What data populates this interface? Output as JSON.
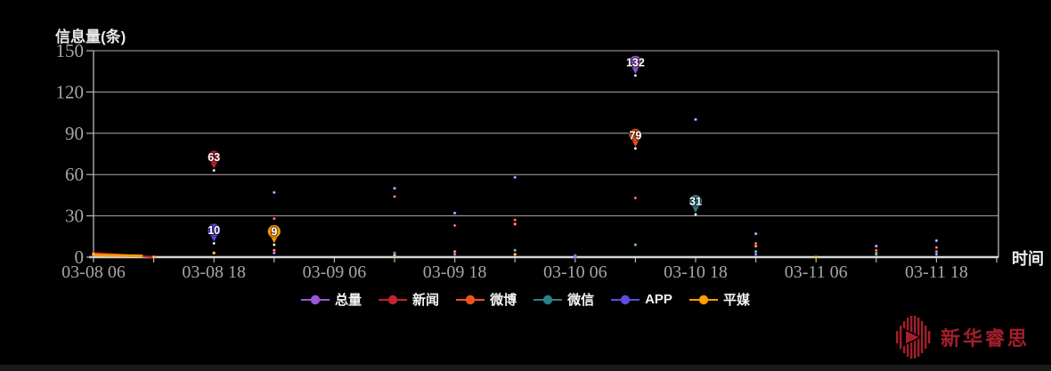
{
  "chart": {
    "title": "信息量(条)",
    "x_axis_label": "时间"
  },
  "chart_data": {
    "type": "line",
    "title": "信息量(条)",
    "xlabel": "时间",
    "ylabel": "信息量(条)",
    "ylim": [
      0,
      150
    ],
    "grid": "horizontal",
    "legend_position": "bottom",
    "y_ticks": [
      0,
      30,
      60,
      90,
      120,
      150
    ],
    "x": [
      "03-08 06",
      "03-08 12",
      "03-08 18",
      "03-09 00",
      "03-09 06",
      "03-09 12",
      "03-09 18",
      "03-10 00",
      "03-10 06",
      "03-10 12",
      "03-10 18",
      "03-11 00",
      "03-11 06",
      "03-11 12",
      "03-11 18"
    ],
    "x_tick_labels": [
      "03-08 06",
      "03-08 18",
      "03-09 06",
      "03-09 18",
      "03-10 06",
      "03-10 18",
      "03-11 06",
      "03-11 18"
    ],
    "series": [
      {
        "name": "总量",
        "color": "#9a57d8",
        "points": [
          [
            0,
            2
          ],
          [
            1,
            0
          ],
          [
            3,
            47
          ],
          [
            5,
            50
          ],
          [
            6,
            32
          ],
          [
            7,
            58
          ],
          [
            8,
            1
          ],
          [
            10,
            100
          ],
          [
            11,
            17
          ],
          [
            13,
            8
          ],
          [
            14,
            12
          ]
        ]
      },
      {
        "name": "新闻",
        "color": "#c2232f",
        "points": [
          [
            0,
            3
          ],
          [
            1,
            0
          ],
          [
            3,
            28
          ],
          [
            5,
            44
          ],
          [
            6,
            23
          ],
          [
            7,
            27
          ],
          [
            9,
            43
          ],
          [
            11,
            10
          ],
          [
            13,
            5
          ],
          [
            14,
            7
          ]
        ]
      },
      {
        "name": "微博",
        "color": "#f4521c",
        "points": [
          [
            3,
            5
          ],
          [
            6,
            4
          ],
          [
            7,
            24
          ],
          [
            11,
            8
          ],
          [
            13,
            3
          ],
          [
            14,
            4
          ]
        ]
      },
      {
        "name": "微信",
        "color": "#2e7f8a",
        "points": [
          [
            5,
            3
          ],
          [
            7,
            5
          ],
          [
            9,
            9
          ],
          [
            11,
            4
          ],
          [
            13,
            2
          ],
          [
            14,
            3
          ]
        ]
      },
      {
        "name": "APP",
        "color": "#5c4ce0",
        "points": [
          [
            3,
            3
          ],
          [
            5,
            2
          ],
          [
            6,
            2
          ],
          [
            8,
            0
          ],
          [
            11,
            2
          ],
          [
            14,
            2
          ]
        ]
      },
      {
        "name": "平媒",
        "color": "#ff9c00",
        "points": [
          [
            0,
            2
          ],
          [
            1,
            0
          ],
          [
            2,
            3
          ],
          [
            5,
            1
          ],
          [
            7,
            2
          ],
          [
            12,
            0
          ]
        ]
      }
    ],
    "start_segments": [
      {
        "series": "新闻",
        "from": [
          0,
          3
        ],
        "to": [
          1,
          0
        ],
        "width": 2.2
      },
      {
        "series": "平媒",
        "from": [
          0,
          1.5
        ],
        "to": [
          0.8,
          0.9
        ],
        "width": 3
      }
    ],
    "annotations": [
      {
        "series": "新闻",
        "t": 2,
        "value": 63,
        "label": "63"
      },
      {
        "series": "APP",
        "t": 2,
        "value": 10,
        "label": "10"
      },
      {
        "series": "平媒",
        "t": 3,
        "value": 9,
        "label": "9"
      },
      {
        "series": "总量",
        "t": 9,
        "value": 132,
        "label": "132"
      },
      {
        "series": "微博",
        "t": 9,
        "value": 79,
        "label": "79"
      },
      {
        "series": "微信",
        "t": 10,
        "value": 31,
        "label": "31"
      }
    ]
  },
  "legend": {
    "items": [
      {
        "label": "总量",
        "color": "#9a57d8"
      },
      {
        "label": "新闻",
        "color": "#c2232f"
      },
      {
        "label": "微博",
        "color": "#f4521c"
      },
      {
        "label": "微信",
        "color": "#2e7f8a"
      },
      {
        "label": "APP",
        "color": "#5c4ce0"
      },
      {
        "label": "平媒",
        "color": "#ff9c00"
      }
    ]
  },
  "branding": {
    "logo_text": "新华睿思",
    "logo_color": "#a51e2c"
  },
  "colors": {
    "background": "#000000",
    "grid": "#c9c9c9",
    "axis": "#d6d6d6",
    "tick_text": "#a6a6a6"
  }
}
